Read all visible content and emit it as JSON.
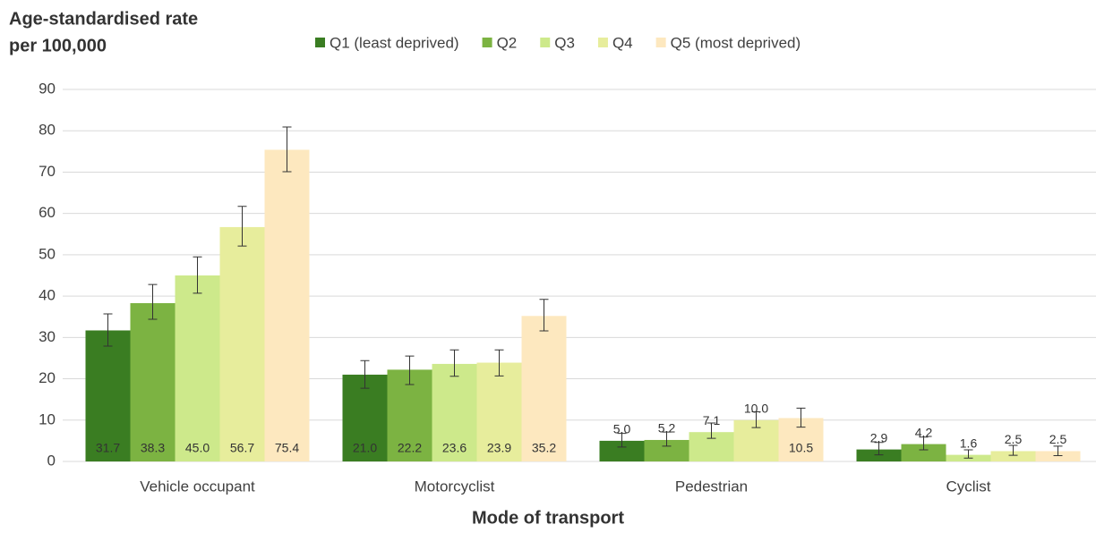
{
  "chart_data": {
    "type": "bar",
    "y_label": [
      "Age-standardised rate",
      "per 100,000"
    ],
    "x_label": "Mode of transport",
    "categories": [
      "Vehicle occupant",
      "Motorcyclist",
      "Pedestrian",
      "Cyclist"
    ],
    "series": [
      {
        "name": "Q1 (least deprived)",
        "color": "#3a7d22",
        "values": [
          31.7,
          21.0,
          5.0,
          2.9
        ],
        "value_labels": [
          "31.7",
          "21.0",
          "5.0",
          "2.9"
        ],
        "ci_low": [
          27.9,
          17.7,
          3.5,
          1.6
        ],
        "ci_high": [
          35.7,
          24.4,
          6.8,
          4.6
        ]
      },
      {
        "name": "Q2",
        "color": "#7cb342",
        "values": [
          38.3,
          22.2,
          5.2,
          4.2
        ],
        "value_labels": [
          "38.3",
          "22.2",
          "5.2",
          "4.2"
        ],
        "ci_low": [
          34.4,
          18.6,
          3.7,
          2.8
        ],
        "ci_high": [
          42.8,
          25.5,
          7.1,
          5.9
        ]
      },
      {
        "name": "Q3",
        "color": "#cde98b",
        "values": [
          45.0,
          23.6,
          7.1,
          1.6
        ],
        "value_labels": [
          "45.0",
          "23.6",
          "7.1",
          "1.6"
        ],
        "ci_low": [
          40.7,
          20.6,
          5.6,
          0.8
        ],
        "ci_high": [
          49.5,
          27.0,
          9.3,
          2.8
        ]
      },
      {
        "name": "Q4",
        "color": "#e7ed9c",
        "values": [
          56.7,
          23.9,
          10.0,
          2.5
        ],
        "value_labels": [
          "56.7",
          "23.9",
          "10.0",
          "2.5"
        ],
        "ci_low": [
          52.1,
          20.7,
          8.2,
          1.5
        ],
        "ci_high": [
          61.7,
          27.0,
          12.0,
          3.9
        ]
      },
      {
        "name": "Q5 (most deprived)",
        "color": "#fde8bf",
        "values": [
          75.4,
          35.2,
          10.5,
          2.5
        ],
        "value_labels": [
          "75.4",
          "35.2",
          "10.5",
          "2.5"
        ],
        "ci_low": [
          70.1,
          31.6,
          8.3,
          1.4
        ],
        "ci_high": [
          80.9,
          39.2,
          12.9,
          3.7
        ]
      }
    ],
    "ylim": [
      0,
      90
    ],
    "yticks": [
      0,
      10,
      20,
      30,
      40,
      50,
      60,
      70,
      80,
      90
    ],
    "grid": true
  }
}
